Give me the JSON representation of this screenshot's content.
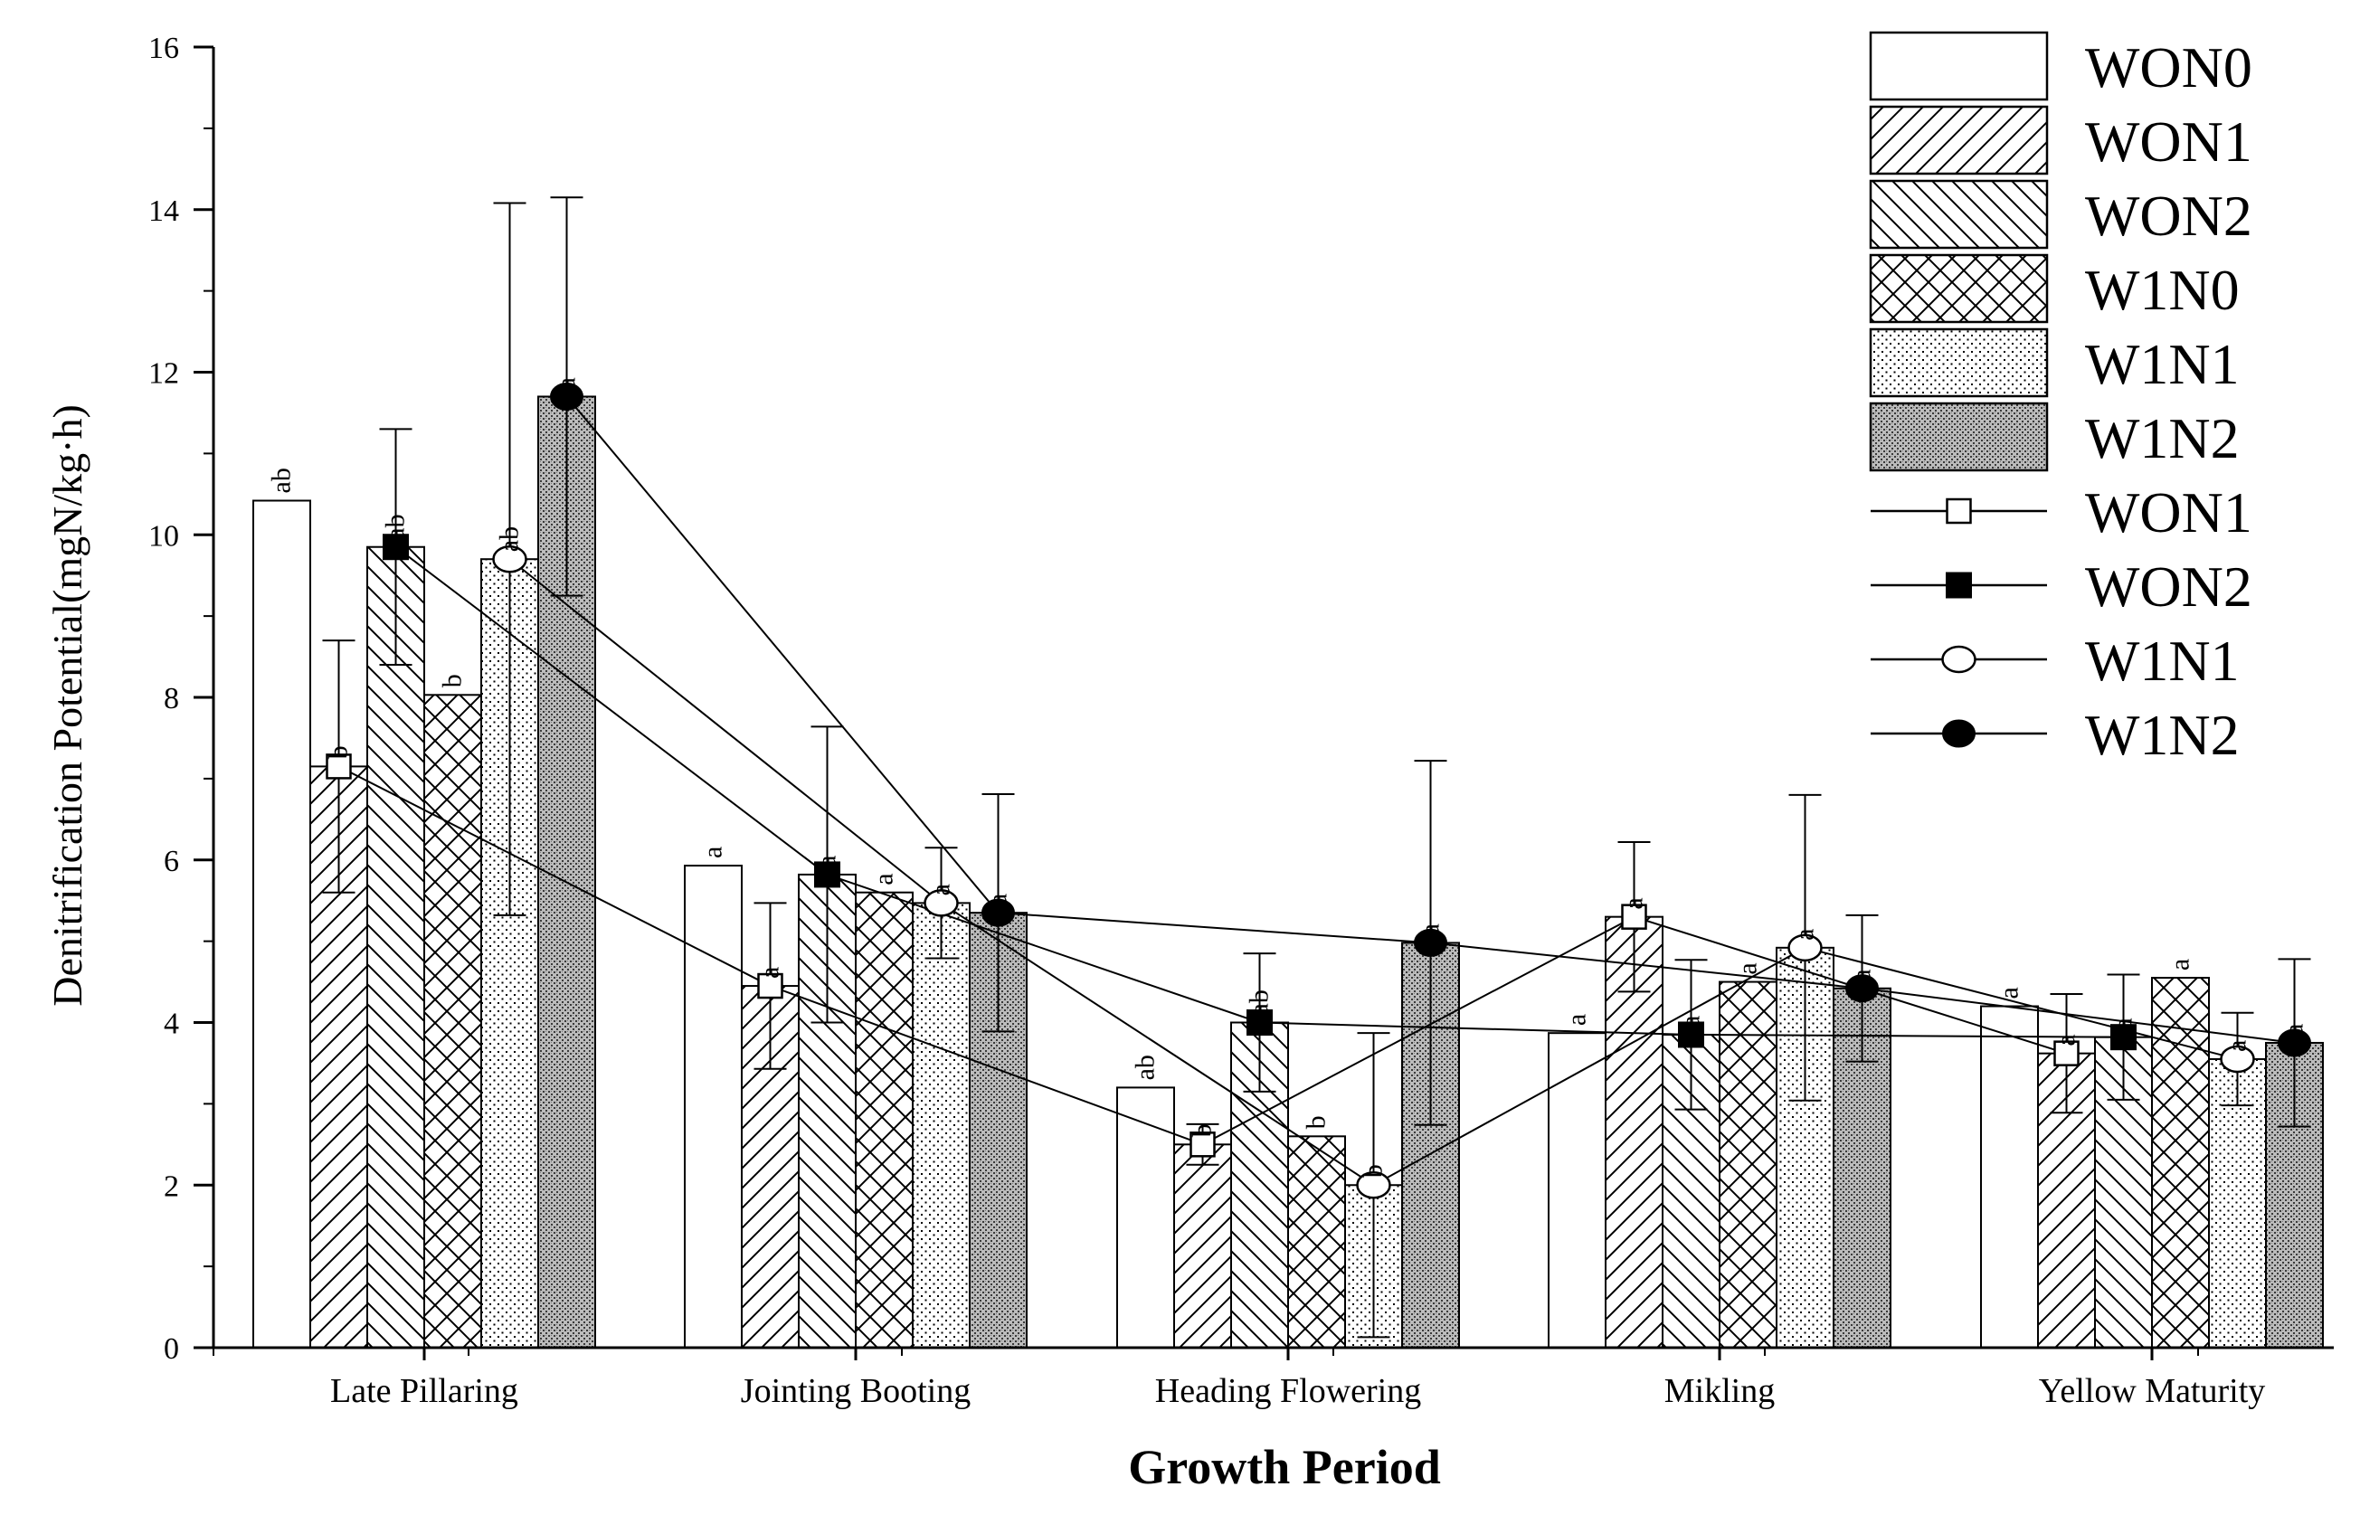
{
  "chart_data": {
    "type": "bar",
    "title": "",
    "xlabel": "Growth Period",
    "ylabel": "Denitrification Potential(mgN/kg·h)",
    "ylim": [
      0,
      16
    ],
    "yticks": [
      "0",
      "2",
      "4",
      "6",
      "8",
      "10",
      "12",
      "14",
      "16"
    ],
    "categories": [
      "Late Pillaring",
      "Jointing Booting",
      "Heading Flowering",
      "Mikling",
      "Yellow Maturity"
    ],
    "legend_position": "top-right",
    "grid": false,
    "series": [
      {
        "name": "WON0",
        "pattern": "empty",
        "values": [
          10.42,
          5.93,
          3.2,
          3.87,
          4.2
        ],
        "error": [
          0,
          0,
          0,
          0,
          0
        ],
        "labels": [
          "ab",
          "a",
          "ab",
          "a",
          "a"
        ]
      },
      {
        "name": "WON1",
        "pattern": "diag-forward",
        "values": [
          7.15,
          4.45,
          2.5,
          5.3,
          3.62
        ],
        "error": [
          1.55,
          1.02,
          0.25,
          0.92,
          0.73
        ],
        "labels": [
          "b",
          "a",
          "b",
          "a",
          "a"
        ]
      },
      {
        "name": "WON2",
        "pattern": "diag-back",
        "values": [
          9.85,
          5.82,
          4.0,
          3.85,
          3.82
        ],
        "error": [
          1.45,
          1.82,
          0.85,
          0.92,
          0.77
        ],
        "labels": [
          "ab",
          "a",
          "ab",
          "a",
          "a"
        ]
      },
      {
        "name": "W1N0",
        "pattern": "cross",
        "values": [
          8.03,
          5.6,
          2.6,
          4.5,
          4.55
        ],
        "error": [
          0,
          0,
          0,
          0,
          0
        ],
        "labels": [
          "b",
          "a",
          "b",
          "a",
          "a"
        ]
      },
      {
        "name": "W1N1",
        "pattern": "dots",
        "values": [
          9.7,
          5.47,
          2.0,
          4.92,
          3.55
        ],
        "error": [
          4.38,
          0.68,
          1.87,
          1.88,
          0.57
        ],
        "labels": [
          "ab",
          "a",
          "b",
          "a",
          "a"
        ]
      },
      {
        "name": "W1N2",
        "pattern": "dense",
        "values": [
          11.7,
          5.35,
          4.98,
          4.42,
          3.75
        ],
        "error": [
          2.45,
          1.46,
          2.24,
          0.9,
          1.03
        ],
        "labels": [
          "a",
          "a",
          "a",
          "a",
          "a"
        ]
      }
    ],
    "line_series": [
      {
        "name": "WON1",
        "marker": "open-square",
        "values": [
          7.15,
          4.45,
          2.5,
          5.3,
          3.62
        ]
      },
      {
        "name": "WON2",
        "marker": "filled-square",
        "values": [
          9.85,
          5.82,
          4.0,
          3.85,
          3.82
        ]
      },
      {
        "name": "W1N1",
        "marker": "open-circle",
        "values": [
          9.7,
          5.47,
          2.0,
          4.92,
          3.55
        ]
      },
      {
        "name": "W1N2",
        "marker": "filled-circle",
        "values": [
          11.7,
          5.35,
          4.98,
          4.42,
          3.75
        ]
      }
    ]
  }
}
